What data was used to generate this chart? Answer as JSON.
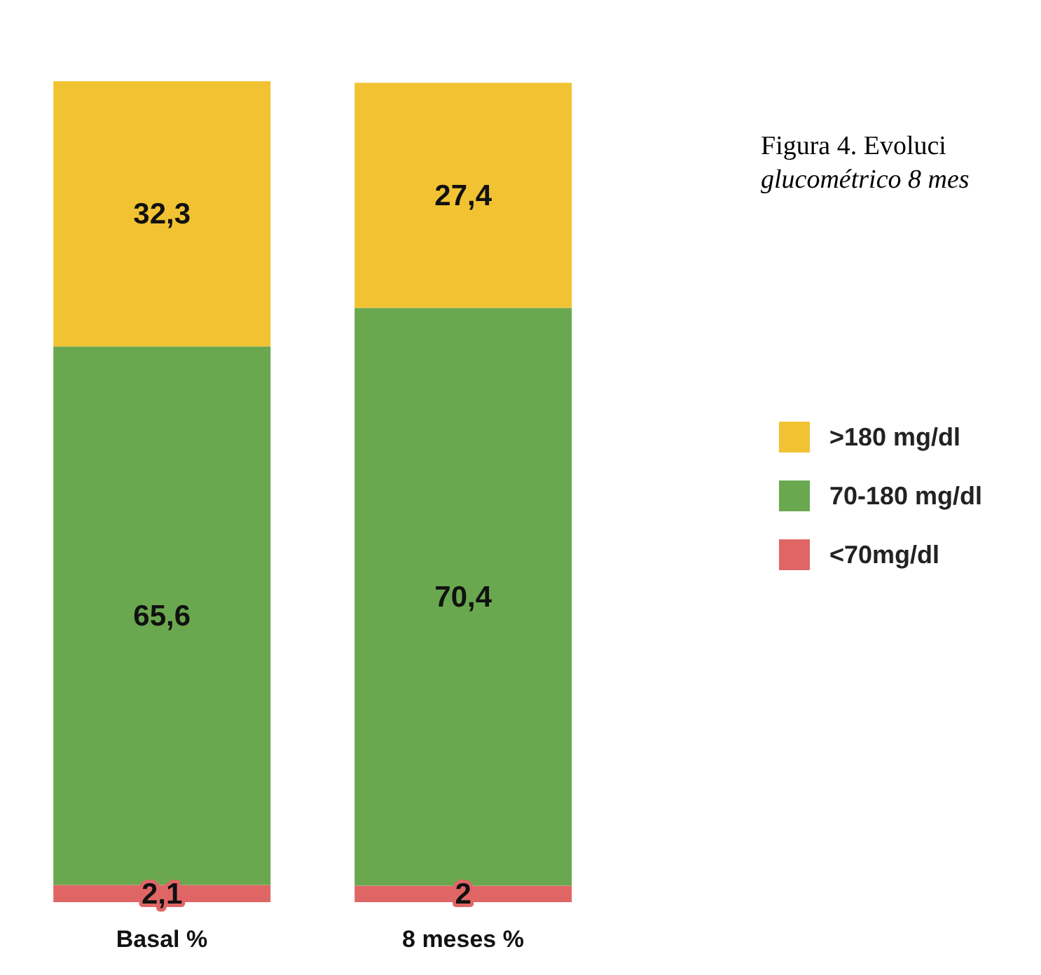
{
  "chart_data": {
    "type": "bar",
    "stacked": true,
    "categories": [
      "Basal %",
      "8 meses %"
    ],
    "series": [
      {
        "name": "<70mg/dl",
        "color": "#e06666",
        "values": [
          2.1,
          2
        ],
        "value_labels": [
          "2,1",
          "2"
        ]
      },
      {
        "name": "70-180 mg/dl",
        "color": "#6aa84f",
        "values": [
          65.6,
          70.4
        ],
        "value_labels": [
          "65,6",
          "70,4"
        ]
      },
      {
        "name": ">180 mg/dl",
        "color": "#f1c232",
        "values": [
          32.3,
          27.4
        ],
        "value_labels": [
          "32,3",
          "27,4"
        ]
      }
    ],
    "legend": "right",
    "annotations": [
      "Figura 4. Evoluci",
      "glucométrico 8 mes"
    ]
  }
}
